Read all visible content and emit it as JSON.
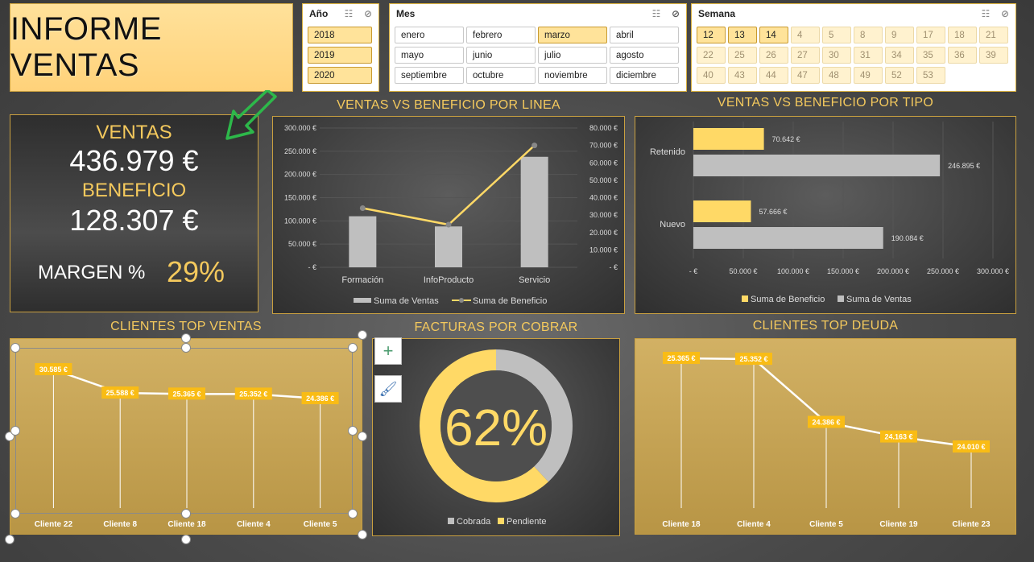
{
  "title": "INFORME VENTAS",
  "slicers": {
    "anio": {
      "title": "Año",
      "items": [
        {
          "label": "2018",
          "state": "sel"
        },
        {
          "label": "2019",
          "state": "sel"
        },
        {
          "label": "2020",
          "state": "sel"
        }
      ]
    },
    "mes": {
      "title": "Mes",
      "items": [
        {
          "label": "enero",
          "state": "normal"
        },
        {
          "label": "febrero",
          "state": "normal"
        },
        {
          "label": "marzo",
          "state": "sel"
        },
        {
          "label": "abril",
          "state": "normal"
        },
        {
          "label": "mayo",
          "state": "normal"
        },
        {
          "label": "junio",
          "state": "normal"
        },
        {
          "label": "julio",
          "state": "normal"
        },
        {
          "label": "agosto",
          "state": "normal"
        },
        {
          "label": "septiembre",
          "state": "normal"
        },
        {
          "label": "octubre",
          "state": "normal"
        },
        {
          "label": "noviembre",
          "state": "normal"
        },
        {
          "label": "diciembre",
          "state": "normal"
        }
      ]
    },
    "semana": {
      "title": "Semana",
      "items": [
        {
          "label": "12",
          "state": "sel"
        },
        {
          "label": "13",
          "state": "sel"
        },
        {
          "label": "14",
          "state": "sel"
        },
        {
          "label": "4",
          "state": "dim"
        },
        {
          "label": "5",
          "state": "dim"
        },
        {
          "label": "8",
          "state": "dim"
        },
        {
          "label": "9",
          "state": "dim"
        },
        {
          "label": "17",
          "state": "dim"
        },
        {
          "label": "18",
          "state": "dim"
        },
        {
          "label": "21",
          "state": "dim"
        },
        {
          "label": "22",
          "state": "dim"
        },
        {
          "label": "25",
          "state": "dim"
        },
        {
          "label": "26",
          "state": "dim"
        },
        {
          "label": "27",
          "state": "dim"
        },
        {
          "label": "30",
          "state": "dim"
        },
        {
          "label": "31",
          "state": "dim"
        },
        {
          "label": "34",
          "state": "dim"
        },
        {
          "label": "35",
          "state": "dim"
        },
        {
          "label": "36",
          "state": "dim"
        },
        {
          "label": "39",
          "state": "dim"
        },
        {
          "label": "40",
          "state": "dim"
        },
        {
          "label": "43",
          "state": "dim"
        },
        {
          "label": "44",
          "state": "dim"
        },
        {
          "label": "47",
          "state": "dim"
        },
        {
          "label": "48",
          "state": "dim"
        },
        {
          "label": "49",
          "state": "dim"
        },
        {
          "label": "52",
          "state": "dim"
        },
        {
          "label": "53",
          "state": "dim"
        }
      ]
    }
  },
  "kpi": {
    "ventas_label": "VENTAS",
    "ventas_value": "436.979 €",
    "beneficio_label": "BENEFICIO",
    "beneficio_value": "128.307 €",
    "margen_label": "MARGEN %",
    "margen_value": "29%"
  },
  "colors": {
    "gold": "#ffd966",
    "gray": "#bfbfbf",
    "title_gold": "#f4c95d",
    "arrow": "#2db84a"
  },
  "chart_data": [
    {
      "id": "linea",
      "type": "bar",
      "title": "VENTAS VS BENEFICIO POR LINEA",
      "categories": [
        "Formación",
        "InfoProducto",
        "Servicio"
      ],
      "series": [
        {
          "name": "Suma de Ventas",
          "kind": "bar",
          "axis": "left",
          "values": [
            110000,
            88000,
            238000
          ]
        },
        {
          "name": "Suma de Beneficio",
          "kind": "line",
          "axis": "right",
          "values": [
            34000,
            24500,
            70000
          ]
        }
      ],
      "y_left_ticks": [
        "-  €",
        "50.000 €",
        "100.000 €",
        "150.000 €",
        "200.000 €",
        "250.000 €",
        "300.000 €"
      ],
      "y_right_ticks": [
        "-  €",
        "10.000 €",
        "20.000 €",
        "30.000 €",
        "40.000 €",
        "50.000 €",
        "60.000 €",
        "70.000 €",
        "80.000 €"
      ],
      "ylim_left": [
        0,
        300000
      ],
      "ylim_right": [
        0,
        80000
      ],
      "legend": "bottom"
    },
    {
      "id": "tipo",
      "type": "bar",
      "title": "VENTAS VS BENEFICIO POR TIPO",
      "orientation": "horizontal",
      "categories": [
        "Retenido",
        "Nuevo"
      ],
      "series": [
        {
          "name": "Suma de Beneficio",
          "values": [
            70642,
            57666
          ],
          "labels": [
            "70.642 €",
            "57.666 €"
          ]
        },
        {
          "name": "Suma de Ventas",
          "values": [
            246895,
            190084
          ],
          "labels": [
            "246.895 €",
            "190.084 €"
          ]
        }
      ],
      "x_ticks": [
        "-  €",
        "50.000 €",
        "100.000 €",
        "150.000 €",
        "200.000 €",
        "250.000 €",
        "300.000 €"
      ],
      "xlim": [
        0,
        300000
      ],
      "legend": "bottom"
    },
    {
      "id": "top_ventas",
      "type": "line",
      "title": "CLIENTES TOP VENTAS",
      "categories": [
        "Cliente 22",
        "Cliente 8",
        "Cliente 18",
        "Cliente 4",
        "Cliente 5"
      ],
      "values": [
        30585,
        25588,
        25365,
        25352,
        24386
      ],
      "labels": [
        "30.585 €",
        "25.588 €",
        "25.365 €",
        "25.352 €",
        "24.386 €"
      ]
    },
    {
      "id": "facturas",
      "type": "pie",
      "title": "FACTURAS POR COBRAR",
      "center_label": "62%",
      "series": [
        {
          "name": "Cobrada",
          "value": 38
        },
        {
          "name": "Pendiente",
          "value": 62
        }
      ],
      "legend": "bottom"
    },
    {
      "id": "top_deuda",
      "type": "line",
      "title": "CLIENTES TOP DEUDA",
      "categories": [
        "Cliente 18",
        "Cliente 4",
        "Cliente 5",
        "Cliente 19",
        "Cliente 23"
      ],
      "values": [
        25365,
        25352,
        24386,
        24163,
        24010
      ],
      "labels": [
        "25.365 €",
        "25.352 €",
        "24.386 €",
        "24.163 €",
        "24.010 €"
      ]
    }
  ]
}
